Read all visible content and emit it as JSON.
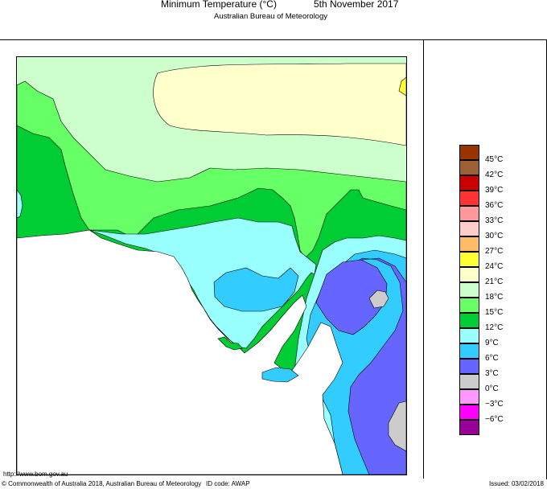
{
  "header": {
    "title": "Minimum Temperature (°C)",
    "date": "5th November 2017",
    "subtitle": "Australian Bureau of Meteorology"
  },
  "footer": {
    "url": "http://www.bom.gov.au",
    "copyright": "© Commonwealth of Australia 2018, Australian Bureau of Meteorology",
    "id_code": "ID code: AWAP",
    "issued": "Issued: 03/02/2018"
  },
  "colors": {
    "c45": "#993300",
    "c42": "#9c6236",
    "c39": "#cc0000",
    "c36": "#ff3333",
    "c33": "#ff9999",
    "c30": "#ffcccc",
    "c27": "#ffbb66",
    "c24": "#ffff33",
    "c21": "#ffffcc",
    "c18": "#ccffcc",
    "c15": "#66ff66",
    "c12": "#00cc33",
    "c9": "#99ffff",
    "c6": "#33ccff",
    "c3": "#6666ff",
    "c0": "#cccccc",
    "cm3": "#ff99ff",
    "cm6": "#ff00ff",
    "cm9": "#990099"
  },
  "legend": {
    "labels": [
      "45°C",
      "42°C",
      "39°C",
      "36°C",
      "33°C",
      "30°C",
      "27°C",
      "24°C",
      "21°C",
      "18°C",
      "15°C",
      "12°C",
      "9°C",
      "6°C",
      "3°C",
      "0°C",
      "−3°C",
      "−6°C"
    ]
  }
}
